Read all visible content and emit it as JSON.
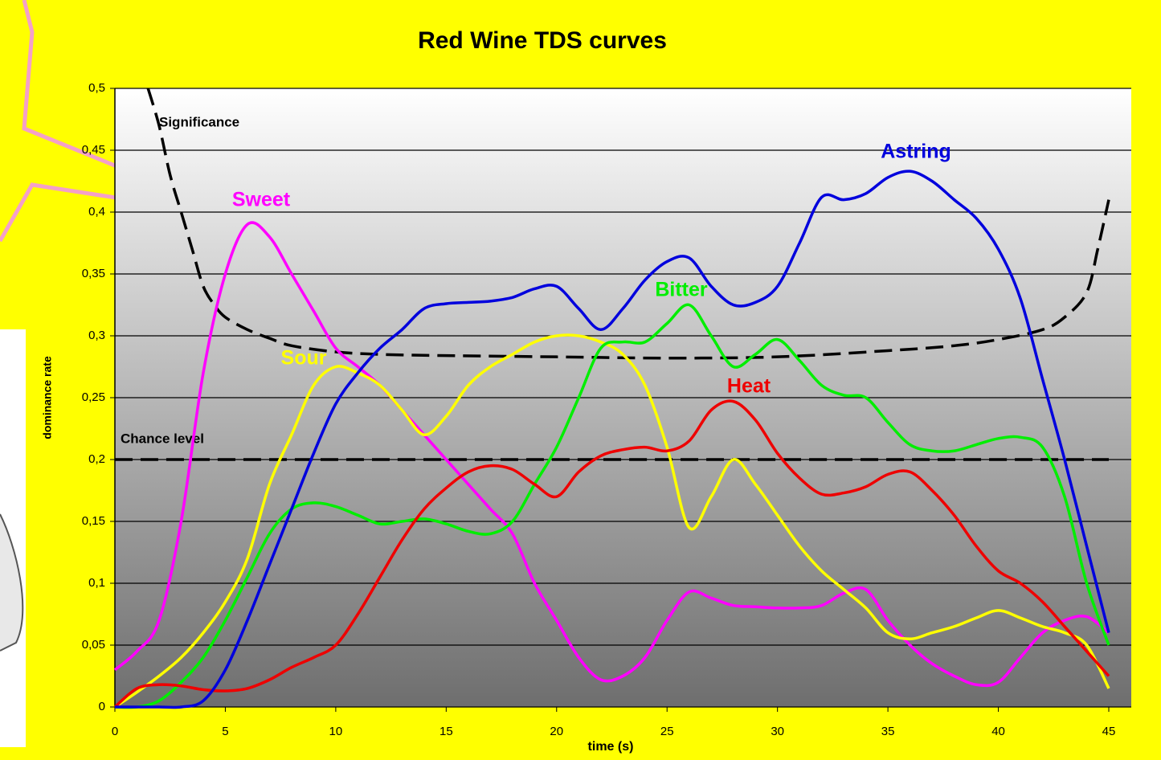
{
  "chart_data": {
    "type": "line",
    "title": "Red Wine TDS curves",
    "x_label": "time (s)",
    "y_label": "dominance rate",
    "x": [
      0,
      1,
      2,
      3,
      4,
      5,
      6,
      7,
      8,
      9,
      10,
      11,
      12,
      13,
      14,
      15,
      16,
      17,
      18,
      19,
      20,
      21,
      22,
      23,
      24,
      25,
      26,
      27,
      28,
      29,
      30,
      31,
      32,
      33,
      34,
      35,
      36,
      37,
      38,
      39,
      40,
      41,
      42,
      43,
      44,
      45
    ],
    "series": [
      {
        "name": "Sweet",
        "color": "#ff00ff",
        "values": [
          0.03,
          0.045,
          0.07,
          0.15,
          0.27,
          0.35,
          0.39,
          0.38,
          0.35,
          0.32,
          0.29,
          0.275,
          0.26,
          0.24,
          0.22,
          0.2,
          0.18,
          0.16,
          0.14,
          0.1,
          0.07,
          0.04,
          0.022,
          0.025,
          0.04,
          0.07,
          0.093,
          0.088,
          0.082,
          0.081,
          0.08,
          0.08,
          0.082,
          0.092,
          0.095,
          0.07,
          0.05,
          0.035,
          0.025,
          0.018,
          0.02,
          0.04,
          0.06,
          0.07,
          0.073,
          0.06
        ]
      },
      {
        "name": "Sour",
        "color": "#ffff00",
        "values": [
          0,
          0.012,
          0.025,
          0.04,
          0.06,
          0.085,
          0.12,
          0.18,
          0.22,
          0.26,
          0.275,
          0.27,
          0.26,
          0.24,
          0.22,
          0.235,
          0.26,
          0.275,
          0.285,
          0.295,
          0.3,
          0.3,
          0.295,
          0.285,
          0.26,
          0.21,
          0.145,
          0.17,
          0.2,
          0.18,
          0.155,
          0.13,
          0.11,
          0.095,
          0.08,
          0.06,
          0.055,
          0.06,
          0.065,
          0.072,
          0.078,
          0.072,
          0.065,
          0.06,
          0.05,
          0.015
        ]
      },
      {
        "name": "Bitter",
        "color": "#00ee00",
        "values": [
          0,
          0,
          0.005,
          0.02,
          0.04,
          0.07,
          0.105,
          0.14,
          0.16,
          0.165,
          0.162,
          0.155,
          0.148,
          0.15,
          0.152,
          0.148,
          0.142,
          0.14,
          0.15,
          0.18,
          0.21,
          0.25,
          0.29,
          0.295,
          0.295,
          0.31,
          0.325,
          0.3,
          0.275,
          0.285,
          0.297,
          0.28,
          0.26,
          0.252,
          0.25,
          0.23,
          0.212,
          0.207,
          0.207,
          0.212,
          0.217,
          0.218,
          0.21,
          0.17,
          0.1,
          0.05
        ]
      },
      {
        "name": "Heat",
        "color": "#ee0000",
        "values": [
          0,
          0.015,
          0.018,
          0.017,
          0.014,
          0.013,
          0.015,
          0.022,
          0.032,
          0.04,
          0.05,
          0.075,
          0.105,
          0.135,
          0.16,
          0.177,
          0.19,
          0.195,
          0.192,
          0.18,
          0.17,
          0.19,
          0.203,
          0.208,
          0.21,
          0.207,
          0.215,
          0.24,
          0.247,
          0.232,
          0.205,
          0.185,
          0.172,
          0.173,
          0.178,
          0.188,
          0.19,
          0.175,
          0.155,
          0.13,
          0.11,
          0.1,
          0.085,
          0.065,
          0.045,
          0.025
        ]
      },
      {
        "name": "Astring",
        "color": "#0000dd",
        "values": [
          0,
          0,
          0,
          0,
          0.005,
          0.03,
          0.07,
          0.115,
          0.16,
          0.205,
          0.245,
          0.27,
          0.29,
          0.305,
          0.322,
          0.326,
          0.327,
          0.328,
          0.331,
          0.338,
          0.34,
          0.322,
          0.305,
          0.322,
          0.345,
          0.36,
          0.363,
          0.34,
          0.325,
          0.327,
          0.34,
          0.375,
          0.412,
          0.41,
          0.415,
          0.428,
          0.433,
          0.425,
          0.41,
          0.395,
          0.37,
          0.33,
          0.265,
          0.2,
          0.13,
          0.06
        ]
      },
      {
        "name": "Significance",
        "color": "#000000",
        "dashed": true,
        "x": [
          1.5,
          2,
          2.5,
          3,
          3.5,
          4,
          4.5,
          5,
          6,
          7,
          8,
          10,
          12,
          15,
          20,
          25,
          30,
          35,
          38,
          40,
          42,
          43,
          44,
          44.5,
          45
        ],
        "values": [
          0.5,
          0.47,
          0.43,
          0.4,
          0.37,
          0.34,
          0.325,
          0.315,
          0.305,
          0.298,
          0.292,
          0.287,
          0.285,
          0.284,
          0.283,
          0.282,
          0.283,
          0.288,
          0.292,
          0.297,
          0.305,
          0.315,
          0.335,
          0.37,
          0.41
        ]
      },
      {
        "name": "Chance level",
        "color": "#000000",
        "dashed": true,
        "x": [
          0,
          45
        ],
        "values": [
          0.2,
          0.2
        ]
      }
    ],
    "xlim": [
      0,
      45
    ],
    "xticks": [
      0,
      5,
      10,
      15,
      20,
      25,
      30,
      35,
      40,
      45
    ],
    "ylim": [
      0,
      0.5
    ],
    "yticks": [
      0,
      {
        "value": 0.05,
        "label": "0,05"
      },
      {
        "value": 0.1,
        "label": "0,1"
      },
      {
        "value": 0.15,
        "label": "0,15"
      },
      {
        "value": 0.2,
        "label": "0,2"
      },
      {
        "value": 0.25,
        "label": "0,25"
      },
      {
        "value": 0.3,
        "label": "0,3"
      },
      {
        "value": 0.35,
        "label": "0,35"
      },
      {
        "value": 0.4,
        "label": "0,4"
      },
      {
        "value": 0.45,
        "label": "0,45"
      },
      {
        "value": 0.5,
        "label": "0,5"
      }
    ],
    "grid": true
  }
}
